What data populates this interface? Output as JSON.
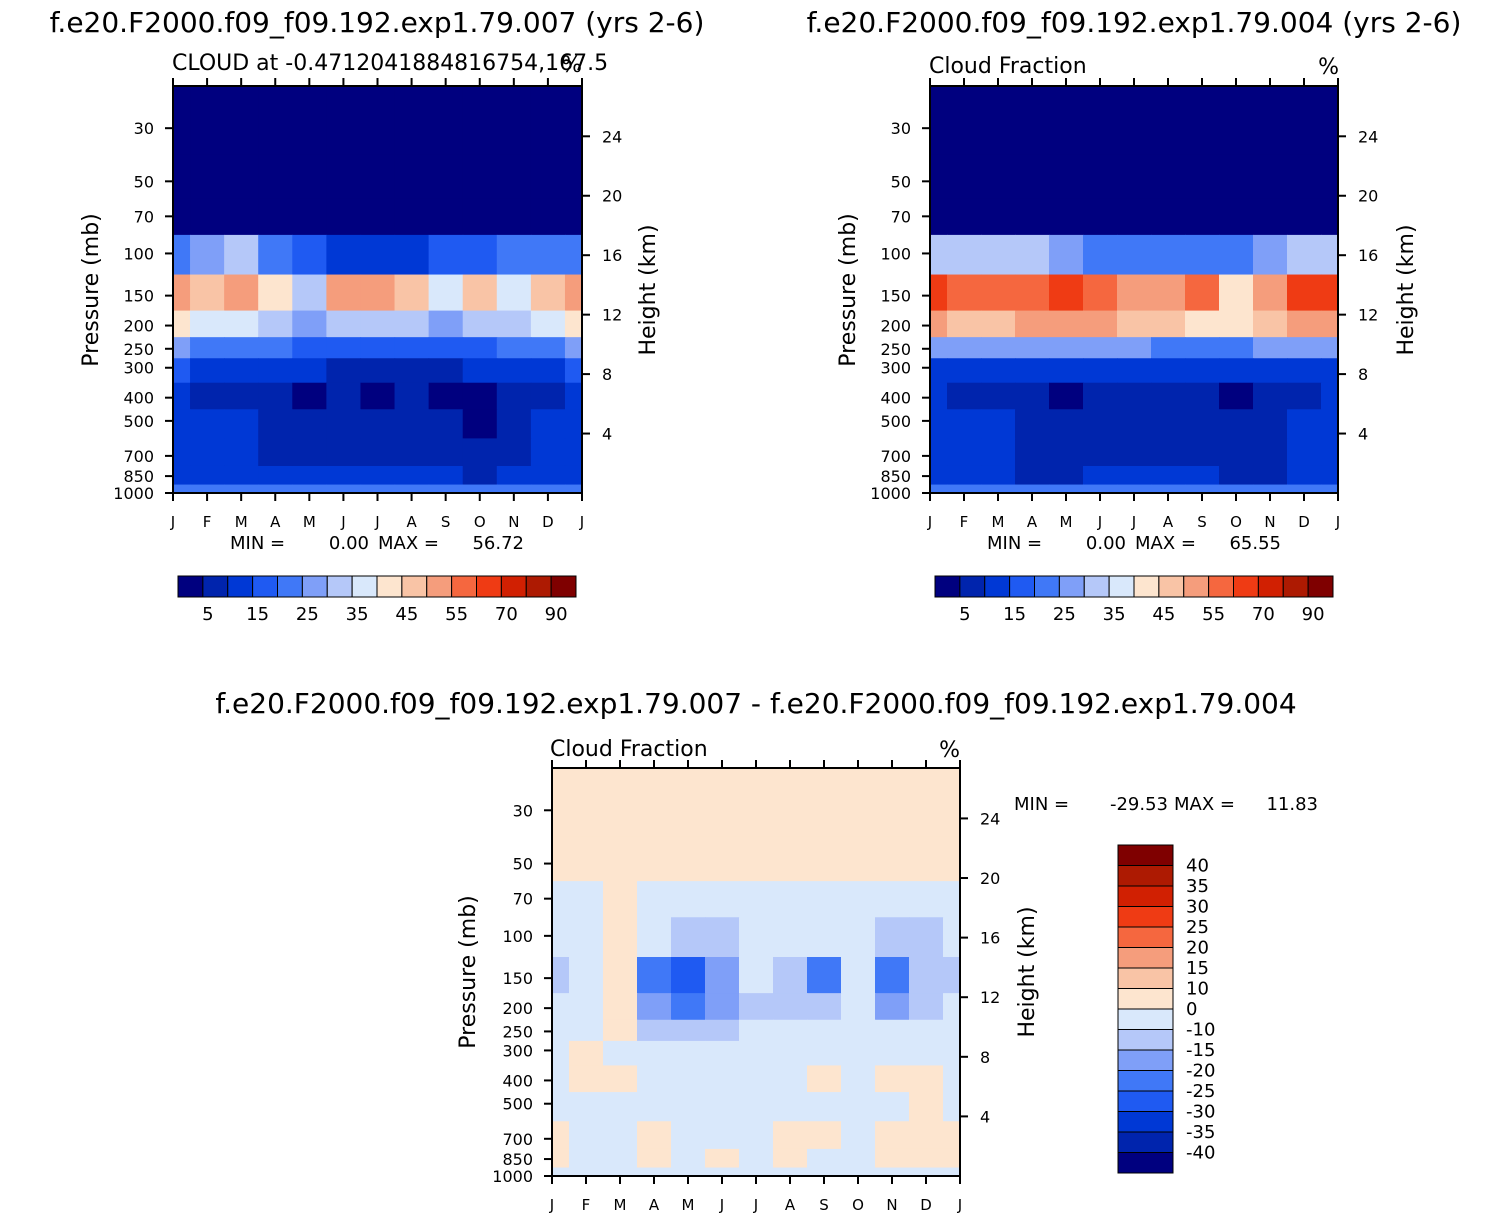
{
  "chart_data": [
    {
      "type": "heatmap",
      "case_title": "f.e20.F2000.f09_f09.192.exp1.79.007 (yrs 2-6)",
      "title": "CLOUD at -0.4712041884816754,167.5",
      "units": "%",
      "xlabel": "",
      "ylabel": "Pressure (mb)",
      "ylabel_right": "Height (km)",
      "x_ticks": [
        "J",
        "F",
        "M",
        "A",
        "M",
        "J",
        "J",
        "A",
        "S",
        "O",
        "N",
        "D",
        "J"
      ],
      "y_ticks": [
        "30",
        "50",
        "70",
        "100",
        "150",
        "200",
        "250",
        "300",
        "400",
        "500",
        "700",
        "850",
        "1000"
      ],
      "y_ticks_values": [
        30,
        50,
        70,
        100,
        150,
        200,
        250,
        300,
        400,
        500,
        700,
        850,
        1000
      ],
      "height_ticks": [
        "24",
        "20",
        "16",
        "12",
        "8",
        "4"
      ],
      "height_ticks_values": [
        24,
        20,
        16,
        12,
        8,
        4
      ],
      "ylim": [
        1000,
        20
      ],
      "min_label": "MIN =",
      "min_value": "0.00",
      "max_label": "MAX =",
      "max_value": "56.72",
      "colorbar": {
        "colors": [
          "#00007f",
          "#0024ad",
          "#0038d5",
          "#1f5af2",
          "#4078f7",
          "#7f9ff8",
          "#b5c8f9",
          "#d9e8fb",
          "#fde5cf",
          "#f9c4a6",
          "#f59d7c",
          "#f5673f",
          "#ef3b14",
          "#d12002",
          "#ad1a02",
          "#7f0000"
        ],
        "labels": [
          "5",
          "15",
          "25",
          "35",
          "45",
          "55",
          "70",
          "90"
        ],
        "levels": [
          5,
          10,
          15,
          20,
          25,
          30,
          35,
          40,
          45,
          50,
          55,
          60,
          70,
          80,
          90
        ]
      },
      "pressure_levels": [
        30,
        50,
        70,
        100,
        150,
        200,
        250,
        300,
        400,
        500,
        700,
        850,
        1000
      ],
      "z": [
        [
          0,
          0,
          0,
          0,
          0,
          0,
          0,
          0,
          0,
          0,
          0,
          0,
          0
        ],
        [
          0,
          0,
          0,
          0,
          0,
          0,
          0,
          0,
          0,
          0,
          0,
          0,
          0
        ],
        [
          2,
          2,
          3,
          3,
          2,
          1,
          1,
          1,
          1,
          2,
          2,
          2,
          2
        ],
        [
          22,
          28,
          32,
          24,
          15,
          10,
          10,
          12,
          16,
          18,
          20,
          24,
          22
        ],
        [
          52,
          47,
          52,
          40,
          30,
          50,
          50,
          45,
          35,
          45,
          35,
          47,
          52
        ],
        [
          44,
          36,
          38,
          32,
          28,
          32,
          32,
          30,
          28,
          30,
          32,
          38,
          44
        ],
        [
          25,
          22,
          22,
          20,
          18,
          16,
          16,
          16,
          16,
          18,
          20,
          22,
          25
        ],
        [
          15,
          13,
          12,
          12,
          10,
          9,
          9,
          9,
          9,
          10,
          11,
          13,
          15
        ],
        [
          10,
          6,
          9,
          8,
          4,
          7,
          4,
          8,
          4,
          3,
          6,
          9,
          10
        ],
        [
          12,
          10,
          11,
          9,
          5,
          8,
          8,
          8,
          5,
          4,
          6,
          10,
          12
        ],
        [
          12,
          10,
          11,
          9,
          6,
          9,
          9,
          9,
          7,
          5,
          7,
          10,
          12
        ],
        [
          12,
          10,
          10,
          10,
          10,
          10,
          10,
          10,
          10,
          9,
          10,
          10,
          12
        ],
        [
          22,
          20,
          20,
          20,
          20,
          20,
          20,
          20,
          20,
          20,
          20,
          20,
          22
        ]
      ]
    },
    {
      "type": "heatmap",
      "case_title": "f.e20.F2000.f09_f09.192.exp1.79.004 (yrs 2-6)",
      "title": "Cloud Fraction",
      "units": "%",
      "xlabel": "",
      "ylabel": "Pressure (mb)",
      "ylabel_right": "Height (km)",
      "x_ticks": [
        "J",
        "F",
        "M",
        "A",
        "M",
        "J",
        "J",
        "A",
        "S",
        "O",
        "N",
        "D",
        "J"
      ],
      "y_ticks": [
        "30",
        "50",
        "70",
        "100",
        "150",
        "200",
        "250",
        "300",
        "400",
        "500",
        "700",
        "850",
        "1000"
      ],
      "y_ticks_values": [
        30,
        50,
        70,
        100,
        150,
        200,
        250,
        300,
        400,
        500,
        700,
        850,
        1000
      ],
      "height_ticks": [
        "24",
        "20",
        "16",
        "12",
        "8",
        "4"
      ],
      "height_ticks_values": [
        24,
        20,
        16,
        12,
        8,
        4
      ],
      "ylim": [
        1000,
        20
      ],
      "min_label": "MIN =",
      "min_value": "0.00",
      "max_label": "MAX =",
      "max_value": "65.55",
      "colorbar": {
        "colors": [
          "#00007f",
          "#0024ad",
          "#0038d5",
          "#1f5af2",
          "#4078f7",
          "#7f9ff8",
          "#b5c8f9",
          "#d9e8fb",
          "#fde5cf",
          "#f9c4a6",
          "#f59d7c",
          "#f5673f",
          "#ef3b14",
          "#d12002",
          "#ad1a02",
          "#7f0000"
        ],
        "labels": [
          "5",
          "15",
          "25",
          "35",
          "45",
          "55",
          "70",
          "90"
        ],
        "levels": [
          5,
          10,
          15,
          20,
          25,
          30,
          35,
          40,
          45,
          50,
          55,
          60,
          70,
          80,
          90
        ]
      },
      "pressure_levels": [
        30,
        50,
        70,
        100,
        150,
        200,
        250,
        300,
        400,
        500,
        700,
        850,
        1000
      ],
      "z": [
        [
          0,
          0,
          0,
          0,
          0,
          0,
          0,
          0,
          0,
          0,
          0,
          0,
          0
        ],
        [
          0,
          0,
          0,
          0,
          0,
          0,
          0,
          0,
          0,
          0,
          0,
          0,
          0
        ],
        [
          3,
          4,
          3,
          3,
          3,
          2,
          2,
          2,
          2,
          2,
          3,
          3,
          3
        ],
        [
          30,
          32,
          30,
          30,
          28,
          24,
          22,
          20,
          20,
          22,
          26,
          30,
          30
        ],
        [
          62,
          55,
          55,
          58,
          62,
          58,
          52,
          50,
          56,
          42,
          54,
          60,
          62
        ],
        [
          52,
          48,
          48,
          50,
          52,
          50,
          48,
          46,
          44,
          40,
          46,
          50,
          52
        ],
        [
          28,
          26,
          26,
          26,
          28,
          26,
          26,
          24,
          24,
          24,
          25,
          26,
          28
        ],
        [
          14,
          13,
          13,
          13,
          13,
          13,
          13,
          12,
          12,
          12,
          12,
          13,
          14
        ],
        [
          10,
          9,
          8,
          7,
          4,
          8,
          8,
          8,
          5,
          4,
          6,
          9,
          10
        ],
        [
          12,
          10,
          10,
          9,
          8,
          9,
          9,
          9,
          6,
          5,
          7,
          10,
          12
        ],
        [
          12,
          10,
          10,
          7,
          8,
          8,
          9,
          9,
          8,
          5,
          5,
          10,
          12
        ],
        [
          12,
          10,
          10,
          9,
          9,
          10,
          10,
          10,
          10,
          9,
          9,
          10,
          12
        ],
        [
          22,
          20,
          20,
          20,
          20,
          20,
          20,
          20,
          20,
          20,
          20,
          20,
          22
        ]
      ]
    },
    {
      "type": "heatmap",
      "case_title": "f.e20.F2000.f09_f09.192.exp1.79.007 - f.e20.F2000.f09_f09.192.exp1.79.004",
      "title": "Cloud Fraction",
      "units": "%",
      "xlabel": "",
      "ylabel": "Pressure (mb)",
      "ylabel_right": "Height (km)",
      "x_ticks": [
        "J",
        "F",
        "M",
        "A",
        "M",
        "J",
        "J",
        "A",
        "S",
        "O",
        "N",
        "D",
        "J"
      ],
      "y_ticks": [
        "30",
        "50",
        "70",
        "100",
        "150",
        "200",
        "250",
        "300",
        "400",
        "500",
        "700",
        "850",
        "1000"
      ],
      "y_ticks_values": [
        30,
        50,
        70,
        100,
        150,
        200,
        250,
        300,
        400,
        500,
        700,
        850,
        1000
      ],
      "height_ticks": [
        "24",
        "20",
        "16",
        "12",
        "8",
        "4"
      ],
      "height_ticks_values": [
        24,
        20,
        16,
        12,
        8,
        4
      ],
      "ylim": [
        1000,
        20
      ],
      "min_label": "MIN =",
      "min_value": "-29.53",
      "max_label": "MAX =",
      "max_value": "11.83",
      "colorbar": {
        "colors": [
          "#00007f",
          "#0024ad",
          "#0038d5",
          "#1f5af2",
          "#4078f7",
          "#7f9ff8",
          "#b5c8f9",
          "#d9e8fb",
          "#fde5cf",
          "#f9c4a6",
          "#f59d7c",
          "#f5673f",
          "#ef3b14",
          "#d12002",
          "#ad1a02",
          "#7f0000"
        ],
        "labels": [
          "40",
          "35",
          "30",
          "25",
          "20",
          "15",
          "10",
          "0",
          "-10",
          "-15",
          "-20",
          "-25",
          "-30",
          "-35",
          "-40"
        ],
        "levels": [
          -40,
          -35,
          -30,
          -25,
          -20,
          -15,
          -10,
          0,
          10,
          15,
          20,
          25,
          30,
          35,
          40
        ]
      },
      "pressure_levels": [
        30,
        50,
        70,
        100,
        150,
        200,
        250,
        300,
        400,
        500,
        700,
        850,
        1000
      ],
      "z": [
        [
          1,
          1,
          1,
          1,
          1,
          1,
          1,
          1,
          1,
          1,
          1,
          1,
          1
        ],
        [
          1,
          1,
          1,
          1,
          1,
          1,
          1,
          1,
          1,
          1,
          1,
          1,
          1
        ],
        [
          -2,
          -2,
          2,
          -2,
          -2,
          -2,
          -2,
          -2,
          -2,
          -2,
          -2,
          -2,
          -2
        ],
        [
          -3,
          -3,
          2,
          -5,
          -12,
          -12,
          -8,
          -10,
          -8,
          -6,
          -15,
          -12,
          -3
        ],
        [
          -12,
          -4,
          4,
          -22,
          -28,
          -20,
          -5,
          -15,
          -22,
          -6,
          -22,
          -15,
          -12
        ],
        [
          -4,
          -2,
          2,
          -20,
          -25,
          -16,
          -12,
          -14,
          -14,
          -10,
          -16,
          -12,
          -4
        ],
        [
          -2,
          -2,
          1,
          -12,
          -15,
          -12,
          -10,
          -10,
          -10,
          -8,
          -6,
          -4,
          -2
        ],
        [
          -2,
          1,
          -2,
          -6,
          -8,
          -7,
          -6,
          -6,
          -6,
          -5,
          -2,
          -1,
          -2
        ],
        [
          -2,
          1,
          2,
          -2,
          -2,
          -2,
          -2,
          -2,
          1,
          -2,
          1,
          1,
          -2
        ],
        [
          -2,
          -2,
          -2,
          -2,
          -2,
          -2,
          -2,
          -2,
          -2,
          -2,
          -2,
          1,
          -2
        ],
        [
          1,
          -2,
          -2,
          1,
          -2,
          -2,
          -2,
          1,
          1,
          -2,
          1,
          1,
          1
        ],
        [
          1,
          -2,
          -2,
          1,
          -2,
          1,
          -2,
          1,
          -2,
          -2,
          1,
          1,
          1
        ],
        [
          -2,
          -2,
          -2,
          -2,
          -2,
          -2,
          -2,
          -2,
          -2,
          -2,
          -2,
          -2,
          -2
        ]
      ]
    }
  ]
}
